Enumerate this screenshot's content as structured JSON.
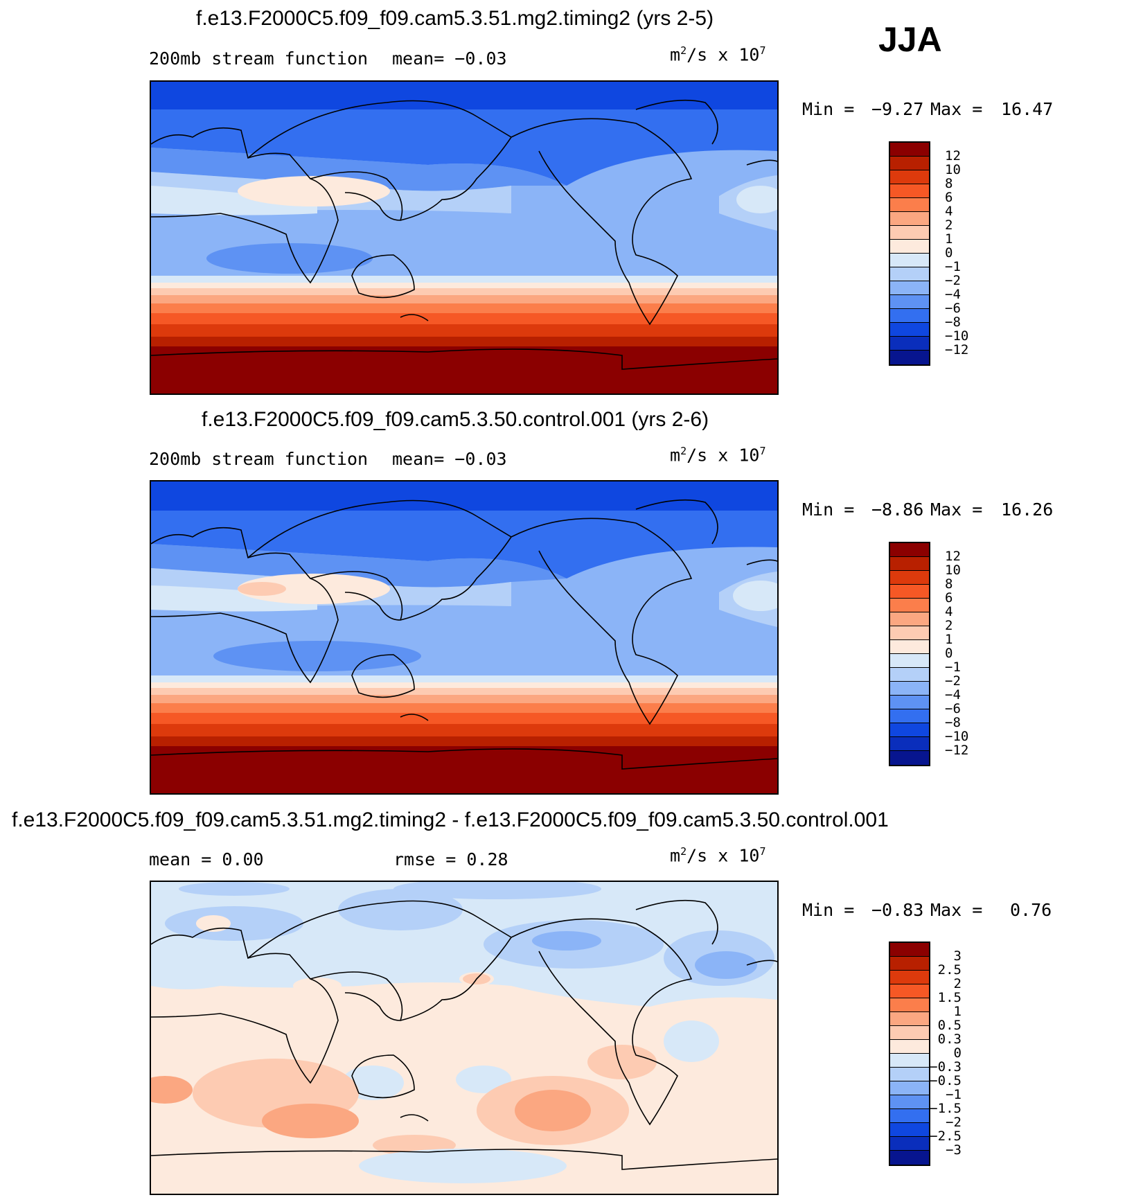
{
  "season": "JJA",
  "units": {
    "base": "m",
    "sq": "2",
    "rest": "/s x 10",
    "exp": "7"
  },
  "panels": [
    {
      "title": "f.e13.F2000C5.f09_f09.cam5.3.51.mg2.timing2 (yrs 2-5)",
      "subtitle_left": "200mb stream function",
      "subtitle_mid": "mean=   −0.03",
      "min_label": "Min =",
      "min_value": "−9.27",
      "max_label": "Max =",
      "max_value": "16.47",
      "colorbar_labels": [
        "12",
        "10",
        "8",
        "6",
        "4",
        "2",
        "1",
        "0",
        "−1",
        "−2",
        "−4",
        "−6",
        "−8",
        "−10",
        "−12"
      ]
    },
    {
      "title": "f.e13.F2000C5.f09_f09.cam5.3.50.control.001 (yrs 2-6)",
      "subtitle_left": "200mb stream function",
      "subtitle_mid": "mean=   −0.03",
      "min_label": "Min =",
      "min_value": "−8.86",
      "max_label": "Max =",
      "max_value": "16.26",
      "colorbar_labels": [
        "12",
        "10",
        "8",
        "6",
        "4",
        "2",
        "1",
        "0",
        "−1",
        "−2",
        "−4",
        "−6",
        "−8",
        "−10",
        "−12"
      ]
    },
    {
      "title": "f.e13.F2000C5.f09_f09.cam5.3.51.mg2.timing2 - f.e13.F2000C5.f09_f09.cam5.3.50.control.001",
      "subtitle_left": "mean =    0.00",
      "subtitle_mid": "rmse =    0.28",
      "min_label": "Min =",
      "min_value": "−0.83",
      "max_label": "Max =",
      "max_value": "0.76",
      "colorbar_labels": [
        "3",
        "2.5",
        "2",
        "1.5",
        "1",
        "0.5",
        "0.3",
        "0",
        "−0.3",
        "−0.5",
        "−1",
        "−1.5",
        "−2",
        "−2.5",
        "−3"
      ]
    }
  ],
  "colorbar_colors": [
    "#8b0000",
    "#b82000",
    "#dd3a0c",
    "#f65825",
    "#fb7e4b",
    "#fba781",
    "#fdcbb2",
    "#fdeadd",
    "#d7e8f8",
    "#b4d0f8",
    "#8bb4f7",
    "#5e92f3",
    "#336ff0",
    "#0f47e0",
    "#0a2ebc",
    "#07158f",
    "#000080"
  ],
  "colorbar_steps_per_panel": 16
}
